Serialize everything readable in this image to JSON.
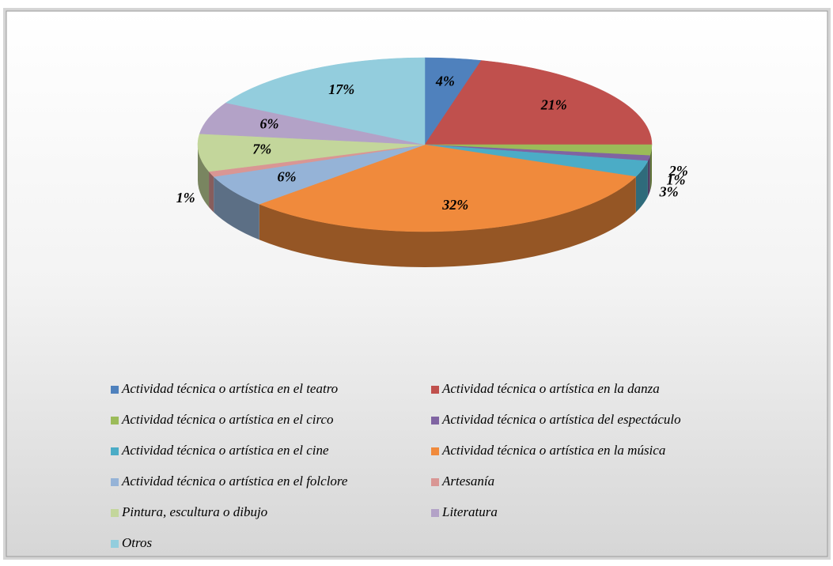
{
  "chart_data": {
    "type": "pie",
    "categories": [
      "Actividad técnica o artística en el teatro",
      "Actividad técnica o artística en la danza",
      "Actividad técnica o artística en el circo",
      "Actividad técnica o artística del espectáculo",
      "Actividad técnica o artística en el cine",
      "Actividad técnica o artística en la música",
      "Actividad técnica o artística en el folclore",
      "Artesanía",
      "Pintura, escultura o dibujo",
      "Literatura",
      "Otros"
    ],
    "values": [
      4,
      21,
      2,
      1,
      3,
      32,
      6,
      1,
      7,
      6,
      17
    ],
    "value_labels": [
      "4%",
      "21%",
      "2%",
      "1%",
      "3%",
      "32%",
      "6%",
      "1%",
      "7%",
      "6%",
      "17%"
    ],
    "colors": [
      "#4f81bd",
      "#c0504d",
      "#9bbb59",
      "#8064a2",
      "#4bacc6",
      "#f08a3c",
      "#95b3d7",
      "#d99694",
      "#c3d69b",
      "#b3a2c7",
      "#93cddd"
    ],
    "legend": "bottom"
  }
}
